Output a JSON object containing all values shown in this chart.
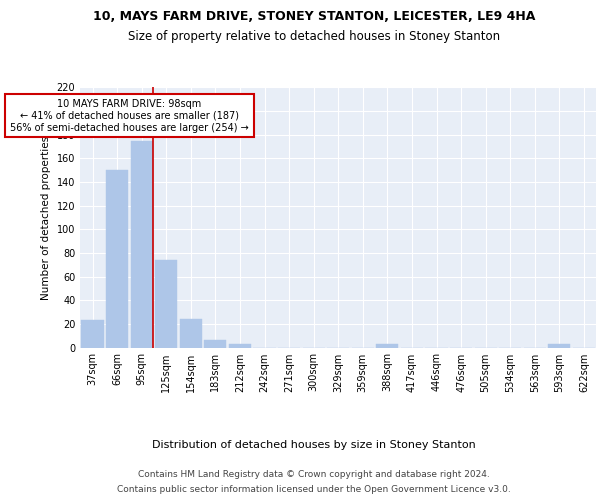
{
  "title1": "10, MAYS FARM DRIVE, STONEY STANTON, LEICESTER, LE9 4HA",
  "title2": "Size of property relative to detached houses in Stoney Stanton",
  "xlabel": "Distribution of detached houses by size in Stoney Stanton",
  "ylabel": "Number of detached properties",
  "categories": [
    "37sqm",
    "66sqm",
    "95sqm",
    "125sqm",
    "154sqm",
    "183sqm",
    "212sqm",
    "242sqm",
    "271sqm",
    "300sqm",
    "329sqm",
    "359sqm",
    "388sqm",
    "417sqm",
    "446sqm",
    "476sqm",
    "505sqm",
    "534sqm",
    "563sqm",
    "593sqm",
    "622sqm"
  ],
  "values": [
    23,
    150,
    175,
    74,
    24,
    6,
    3,
    0,
    0,
    0,
    0,
    0,
    3,
    0,
    0,
    0,
    0,
    0,
    0,
    3,
    0
  ],
  "bar_color": "#aec6e8",
  "vline_color": "#cc0000",
  "annotation_text": "10 MAYS FARM DRIVE: 98sqm\n← 41% of detached houses are smaller (187)\n56% of semi-detached houses are larger (254) →",
  "annotation_box_color": "#ffffff",
  "annotation_edge_color": "#cc0000",
  "footer1": "Contains HM Land Registry data © Crown copyright and database right 2024.",
  "footer2": "Contains public sector information licensed under the Open Government Licence v3.0.",
  "ylim": [
    0,
    220
  ],
  "yticks": [
    0,
    20,
    40,
    60,
    80,
    100,
    120,
    140,
    160,
    180,
    200,
    220
  ],
  "bg_color": "#e8eef7",
  "fig_bg_color": "#ffffff",
  "grid_color": "#ffffff",
  "title1_fontsize": 9,
  "title2_fontsize": 8.5,
  "xlabel_fontsize": 8,
  "ylabel_fontsize": 7.5,
  "tick_fontsize": 7,
  "annotation_fontsize": 7,
  "footer_fontsize": 6.5
}
